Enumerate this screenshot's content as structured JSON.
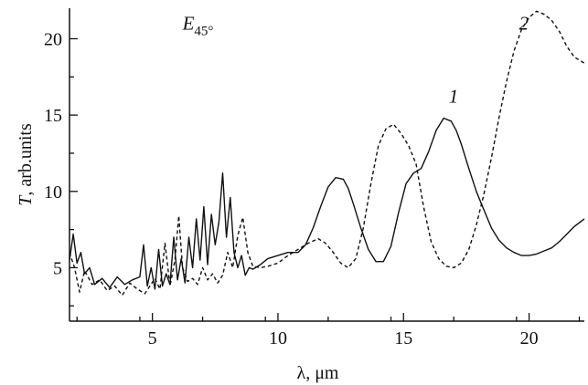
{
  "chart_data": {
    "type": "line",
    "title": "",
    "xlabel": "λ, μm",
    "ylabel": "T, arb.units",
    "ylabel_italic_part": "T",
    "ylabel_rest": ", arb.units",
    "xlim": [
      1.7,
      22.2
    ],
    "ylim": [
      1.5,
      22
    ],
    "x_ticks": [
      5,
      10,
      15,
      20
    ],
    "x_tick_labels": [
      "5",
      "10",
      "15",
      "20"
    ],
    "y_ticks": [
      5,
      10,
      15,
      20
    ],
    "y_tick_labels": [
      "5",
      "10",
      "15",
      "20"
    ],
    "grid": false,
    "legend": "none",
    "annotations": [
      {
        "text_main": "E",
        "text_sub": "45°",
        "x": 6.2,
        "y": 20.6
      },
      {
        "text": "1",
        "x": 16.8,
        "y": 15.8
      },
      {
        "text": "2",
        "x": 19.6,
        "y": 20.6
      }
    ],
    "series": [
      {
        "label": "1",
        "style": "solid",
        "color": "#111111",
        "x": [
          1.7,
          1.85,
          2.0,
          2.15,
          2.3,
          2.5,
          2.7,
          3.0,
          3.3,
          3.6,
          3.9,
          4.2,
          4.5,
          4.65,
          4.8,
          4.95,
          5.1,
          5.25,
          5.4,
          5.55,
          5.7,
          5.85,
          6.0,
          6.15,
          6.3,
          6.45,
          6.6,
          6.75,
          6.9,
          7.05,
          7.2,
          7.35,
          7.5,
          7.65,
          7.8,
          7.95,
          8.1,
          8.25,
          8.4,
          8.55,
          8.7,
          8.85,
          9.0,
          9.3,
          9.6,
          10.0,
          10.4,
          10.8,
          11.1,
          11.4,
          11.7,
          12.0,
          12.3,
          12.6,
          12.8,
          13.0,
          13.3,
          13.6,
          13.9,
          14.2,
          14.5,
          14.8,
          15.1,
          15.4,
          15.7,
          16.0,
          16.3,
          16.6,
          16.9,
          17.1,
          17.3,
          17.6,
          17.9,
          18.2,
          18.5,
          18.8,
          19.1,
          19.4,
          19.7,
          20.0,
          20.3,
          20.6,
          20.9,
          21.2,
          21.5,
          21.8,
          22.2
        ],
        "y": [
          5.5,
          7.2,
          5.3,
          6.0,
          4.6,
          5.0,
          3.9,
          4.3,
          3.7,
          4.4,
          3.9,
          4.2,
          4.4,
          6.5,
          3.8,
          5.0,
          3.6,
          6.2,
          3.8,
          4.6,
          3.9,
          7.0,
          4.2,
          5.6,
          4.0,
          7.0,
          5.0,
          8.2,
          5.5,
          9.0,
          5.2,
          8.5,
          6.5,
          8.0,
          11.2,
          7.0,
          9.6,
          6.0,
          5.0,
          5.8,
          4.5,
          5.0,
          4.9,
          5.2,
          5.6,
          5.8,
          6.0,
          6.0,
          6.5,
          7.6,
          9.0,
          10.3,
          10.9,
          10.8,
          10.2,
          9.2,
          7.6,
          6.2,
          5.4,
          5.4,
          6.4,
          8.6,
          10.5,
          11.2,
          11.5,
          12.6,
          14.0,
          14.8,
          14.6,
          14.0,
          13.1,
          11.5,
          10.0,
          8.8,
          7.6,
          6.8,
          6.3,
          6.0,
          5.8,
          5.8,
          5.9,
          6.1,
          6.3,
          6.7,
          7.2,
          7.7,
          8.2
        ]
      },
      {
        "label": "2",
        "style": "dashed",
        "color": "#111111",
        "x": [
          1.7,
          1.9,
          2.1,
          2.3,
          2.6,
          2.9,
          3.2,
          3.5,
          3.8,
          4.1,
          4.4,
          4.7,
          4.9,
          5.1,
          5.3,
          5.5,
          5.7,
          5.9,
          6.05,
          6.2,
          6.4,
          6.6,
          6.8,
          7.0,
          7.2,
          7.4,
          7.6,
          7.8,
          8.0,
          8.2,
          8.4,
          8.6,
          8.8,
          9.0,
          9.3,
          9.6,
          10.0,
          10.4,
          10.8,
          11.2,
          11.6,
          11.9,
          12.2,
          12.5,
          12.8,
          13.1,
          13.4,
          13.7,
          14.0,
          14.3,
          14.6,
          14.9,
          15.2,
          15.5,
          15.8,
          16.1,
          16.4,
          16.7,
          17.0,
          17.3,
          17.6,
          17.9,
          18.2,
          18.5,
          18.8,
          19.1,
          19.4,
          19.7,
          20.0,
          20.3,
          20.6,
          20.9,
          21.2,
          21.5,
          21.8,
          22.2
        ],
        "y": [
          6.0,
          5.0,
          3.4,
          4.8,
          3.9,
          4.2,
          3.5,
          3.8,
          3.2,
          4.0,
          3.6,
          3.3,
          3.8,
          4.3,
          3.6,
          6.6,
          3.8,
          5.5,
          8.4,
          5.0,
          4.1,
          4.3,
          3.9,
          5.0,
          4.2,
          4.6,
          4.0,
          4.5,
          6.0,
          5.0,
          7.1,
          8.3,
          6.0,
          5.1,
          5.0,
          5.1,
          5.3,
          5.8,
          6.2,
          6.6,
          6.9,
          6.6,
          6.0,
          5.3,
          5.0,
          5.6,
          7.6,
          10.5,
          13.0,
          14.1,
          14.4,
          13.8,
          13.0,
          11.8,
          9.0,
          6.7,
          5.6,
          5.1,
          5.0,
          5.3,
          6.2,
          7.8,
          9.8,
          12.2,
          14.8,
          17.2,
          19.2,
          20.6,
          21.4,
          21.8,
          21.6,
          21.2,
          20.5,
          19.5,
          18.8,
          18.4
        ]
      }
    ]
  }
}
